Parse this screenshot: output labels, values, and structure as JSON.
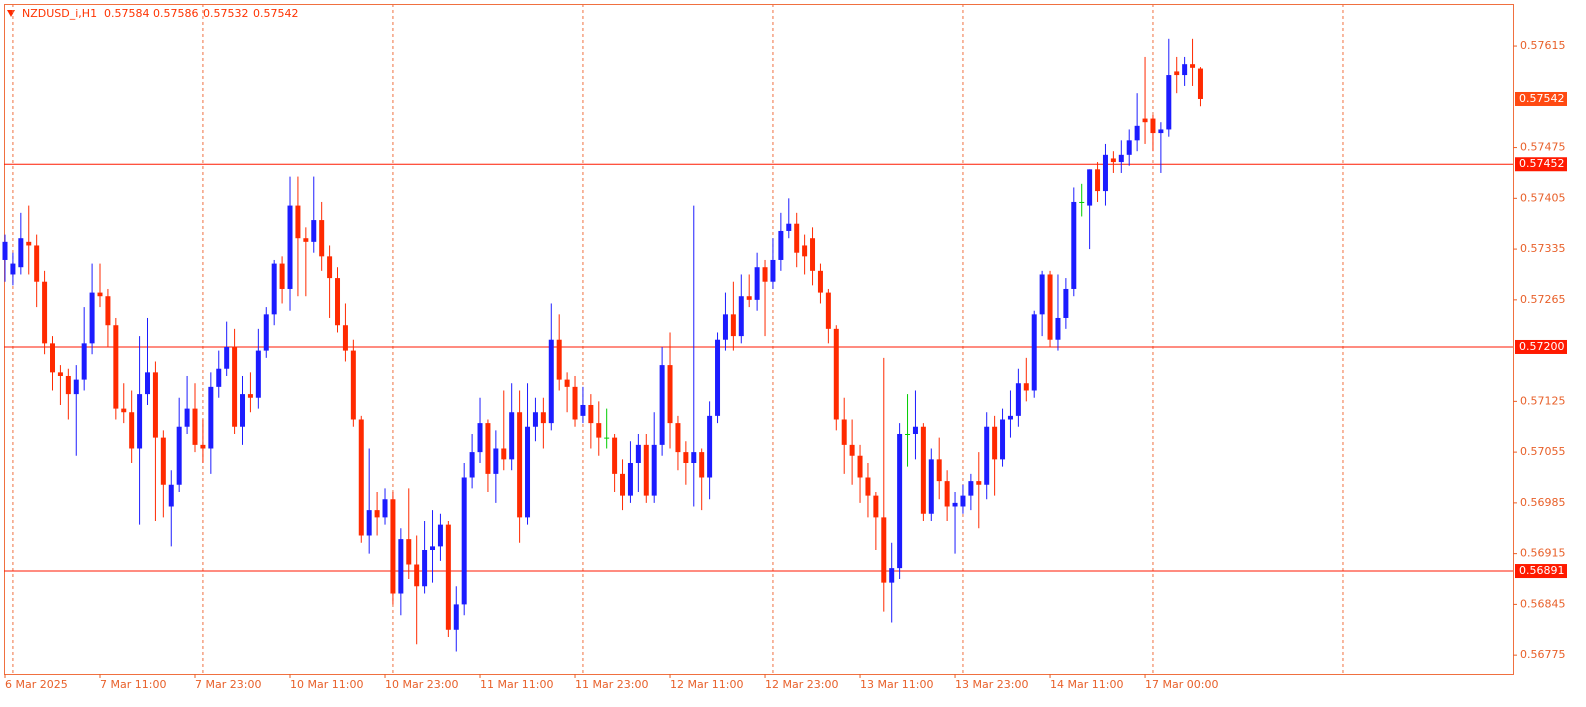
{
  "chart_data": {
    "type": "candlestick",
    "title": "NZDUSD_i,H1",
    "ohlc_header": [
      0.57584,
      0.57586,
      0.57532,
      0.57542
    ],
    "categories": [
      "6 Mar 2025",
      null,
      null,
      null,
      null,
      null,
      null,
      null,
      null,
      null,
      null,
      null,
      "7 Mar 11:00",
      null,
      null,
      null,
      null,
      null,
      null,
      null,
      null,
      null,
      null,
      null,
      "7 Mar 23:00",
      null,
      null,
      null,
      null,
      null,
      null,
      null,
      null,
      null,
      null,
      null,
      "10 Mar 11:00",
      null,
      null,
      null,
      null,
      null,
      null,
      null,
      null,
      null,
      null,
      null,
      "10 Mar 23:00",
      null,
      null,
      null,
      null,
      null,
      null,
      null,
      null,
      null,
      null,
      null,
      "11 Mar 11:00",
      null,
      null,
      null,
      null,
      null,
      null,
      null,
      null,
      null,
      null,
      null,
      "11 Mar 23:00",
      null,
      null,
      null,
      null,
      null,
      null,
      null,
      null,
      null,
      null,
      null,
      "12 Mar 11:00",
      null,
      null,
      null,
      null,
      null,
      null,
      null,
      null,
      null,
      null,
      null,
      "12 Mar 23:00",
      null,
      null,
      null,
      null,
      null,
      null,
      null,
      null,
      null,
      null,
      null,
      "13 Mar 11:00",
      null,
      null,
      null,
      null,
      null,
      null,
      null,
      null,
      null,
      null,
      null,
      "13 Mar 23:00",
      null,
      null,
      null,
      null,
      null,
      null,
      null,
      null,
      null,
      null,
      null,
      "14 Mar 11:00",
      null,
      null,
      null,
      null,
      null,
      null,
      null,
      null,
      null,
      null,
      null,
      "17 Mar 00:00",
      null,
      null,
      null,
      null,
      null,
      null,
      null
    ],
    "open": [
      0.5732,
      0.573,
      0.5731,
      0.57345,
      0.5734,
      0.5729,
      0.57205,
      0.57165,
      0.5716,
      0.57135,
      0.57155,
      0.57205,
      0.57275,
      0.5727,
      0.5723,
      0.57115,
      0.5711,
      0.5706,
      0.57135,
      0.57165,
      0.57075,
      0.5698,
      0.5701,
      0.5709,
      0.57115,
      0.57065,
      0.5706,
      0.57145,
      0.5717,
      0.572,
      0.5709,
      0.57135,
      0.5713,
      0.57195,
      0.57245,
      0.57315,
      0.5728,
      0.57395,
      0.5735,
      0.57345,
      0.57375,
      0.57325,
      0.57295,
      0.5723,
      0.57195,
      0.571,
      0.5694,
      0.56975,
      0.56965,
      0.5699,
      0.5686,
      0.56935,
      0.569,
      0.5687,
      0.5692,
      0.56925,
      0.56955,
      0.5681,
      0.56845,
      0.5702,
      0.57055,
      0.57095,
      0.57025,
      0.5706,
      0.57045,
      0.5711,
      0.56965,
      0.5709,
      0.5711,
      0.57095,
      0.5721,
      0.57155,
      0.57145,
      0.57105,
      0.5712,
      0.57095,
      0.57075,
      0.57075,
      0.57025,
      0.56995,
      0.5704,
      0.57065,
      0.56995,
      0.57065,
      0.57175,
      0.57095,
      0.57055,
      0.5704,
      0.57055,
      0.5702,
      0.57105,
      0.5721,
      0.57245,
      0.57215,
      0.5727,
      0.57265,
      0.5731,
      0.5729,
      0.5732,
      0.5736,
      0.5737,
      0.5734,
      0.5735,
      0.57305,
      0.57275,
      0.57225,
      0.571,
      0.57065,
      0.5705,
      0.5702,
      0.56995,
      0.56965,
      0.56875,
      0.56895,
      0.5708,
      0.5708,
      0.5709,
      0.5697,
      0.57045,
      0.57015,
      0.5698,
      0.5698,
      0.56995,
      0.57015,
      0.5701,
      0.5709,
      0.57045,
      0.571,
      0.57105,
      0.5715,
      0.5714,
      0.57245,
      0.573,
      0.5721,
      0.5724,
      0.5728,
      0.574,
      0.57395,
      0.57445,
      0.57415,
      0.5746,
      0.57455,
      0.57465,
      0.57485,
      0.57515,
      0.57515,
      0.57495,
      0.575,
      0.5758,
      0.57575,
      0.5759,
      0.57584
    ],
    "high": [
      0.57355,
      0.5733,
      0.57385,
      0.57395,
      0.57355,
      0.57305,
      0.57215,
      0.57175,
      0.5717,
      0.57175,
      0.57255,
      0.57315,
      0.57315,
      0.5728,
      0.5724,
      0.5715,
      0.5714,
      0.57215,
      0.5724,
      0.5718,
      0.57085,
      0.5703,
      0.5713,
      0.5716,
      0.5715,
      0.571,
      0.57165,
      0.57195,
      0.57235,
      0.57225,
      0.5716,
      0.57165,
      0.57225,
      0.57255,
      0.5732,
      0.57325,
      0.57435,
      0.57435,
      0.57365,
      0.57435,
      0.574,
      0.5734,
      0.5731,
      0.5726,
      0.5721,
      0.57105,
      0.5706,
      0.57,
      0.57005,
      0.57,
      0.5695,
      0.57005,
      0.5694,
      0.5696,
      0.56975,
      0.5697,
      0.5696,
      0.5687,
      0.5704,
      0.5708,
      0.5713,
      0.571,
      0.57085,
      0.5714,
      0.5715,
      0.5714,
      0.5715,
      0.5713,
      0.5713,
      0.5726,
      0.57245,
      0.57165,
      0.5716,
      0.57145,
      0.57135,
      0.57125,
      0.57115,
      0.5708,
      0.57045,
      0.5707,
      0.5708,
      0.5708,
      0.5711,
      0.572,
      0.5722,
      0.57105,
      0.5707,
      0.57395,
      0.5706,
      0.57125,
      0.5722,
      0.57275,
      0.5729,
      0.573,
      0.573,
      0.5733,
      0.5732,
      0.5735,
      0.57385,
      0.57405,
      0.57385,
      0.57355,
      0.57365,
      0.57315,
      0.5728,
      0.5723,
      0.5713,
      0.571,
      0.57065,
      0.5704,
      0.57,
      0.57185,
      0.5693,
      0.57095,
      0.57135,
      0.5714,
      0.57095,
      0.5706,
      0.57075,
      0.5703,
      0.57,
      0.5701,
      0.57025,
      0.57055,
      0.5711,
      0.57105,
      0.57115,
      0.5714,
      0.5717,
      0.57185,
      0.5725,
      0.57305,
      0.57305,
      0.573,
      0.57295,
      0.5742,
      0.57425,
      0.57445,
      0.57455,
      0.5748,
      0.5747,
      0.57485,
      0.575,
      0.5755,
      0.576,
      0.5752,
      0.5751,
      0.57625,
      0.576,
      0.576,
      0.57625,
      0.57586
    ],
    "low": [
      0.5729,
      0.57285,
      0.573,
      0.573,
      0.57255,
      0.5719,
      0.5714,
      0.5712,
      0.571,
      0.5705,
      0.5714,
      0.5719,
      0.57255,
      0.572,
      0.571,
      0.57095,
      0.5704,
      0.56955,
      0.5712,
      0.5696,
      0.56965,
      0.56925,
      0.57,
      0.5708,
      0.57055,
      0.5704,
      0.57025,
      0.5713,
      0.5716,
      0.5708,
      0.57065,
      0.5711,
      0.57115,
      0.57185,
      0.5723,
      0.5726,
      0.5725,
      0.5727,
      0.5727,
      0.5733,
      0.57305,
      0.5724,
      0.5722,
      0.5718,
      0.5709,
      0.5693,
      0.56915,
      0.5694,
      0.56955,
      0.56845,
      0.5683,
      0.5688,
      0.5679,
      0.5686,
      0.56875,
      0.56905,
      0.568,
      0.5678,
      0.5683,
      0.57005,
      0.5704,
      0.57,
      0.56985,
      0.5703,
      0.5703,
      0.5693,
      0.56955,
      0.5707,
      0.5706,
      0.57085,
      0.5714,
      0.5711,
      0.5709,
      0.57095,
      0.5706,
      0.5705,
      0.5706,
      0.57,
      0.56975,
      0.56985,
      0.57,
      0.56985,
      0.56985,
      0.5705,
      0.5706,
      0.5703,
      0.5701,
      0.5698,
      0.56975,
      0.5699,
      0.57095,
      0.57195,
      0.57195,
      0.57205,
      0.57255,
      0.5725,
      0.57215,
      0.5728,
      0.57305,
      0.5735,
      0.5731,
      0.573,
      0.57285,
      0.5726,
      0.57205,
      0.57085,
      0.57025,
      0.5701,
      0.56985,
      0.56965,
      0.5692,
      0.56835,
      0.5682,
      0.5688,
      0.57035,
      0.57045,
      0.5696,
      0.5696,
      0.5699,
      0.5696,
      0.56915,
      0.5697,
      0.56975,
      0.5695,
      0.5699,
      0.56995,
      0.57035,
      0.57075,
      0.5709,
      0.57125,
      0.5713,
      0.57215,
      0.572,
      0.57195,
      0.57225,
      0.5727,
      0.5738,
      0.57335,
      0.574,
      0.57395,
      0.5744,
      0.5744,
      0.5745,
      0.5747,
      0.5748,
      0.5747,
      0.5744,
      0.5749,
      0.5755,
      0.5756,
      0.5756,
      0.57532
    ],
    "close": [
      0.57345,
      0.57315,
      0.5735,
      0.5734,
      0.5729,
      0.57205,
      0.57165,
      0.5716,
      0.57135,
      0.57155,
      0.57205,
      0.57275,
      0.5727,
      0.5723,
      0.57115,
      0.5711,
      0.5706,
      0.57135,
      0.57165,
      0.57075,
      0.5701,
      0.5701,
      0.5709,
      0.57115,
      0.57065,
      0.5706,
      0.57145,
      0.5717,
      0.572,
      0.5709,
      0.57135,
      0.5713,
      0.57195,
      0.57245,
      0.57315,
      0.5728,
      0.57395,
      0.5735,
      0.57345,
      0.57375,
      0.57325,
      0.57295,
      0.5723,
      0.57195,
      0.571,
      0.5694,
      0.56975,
      0.56965,
      0.5699,
      0.5686,
      0.56935,
      0.569,
      0.5687,
      0.5692,
      0.56925,
      0.56955,
      0.5681,
      0.56845,
      0.5702,
      0.57055,
      0.57095,
      0.57025,
      0.5706,
      0.57045,
      0.5711,
      0.56965,
      0.5709,
      0.5711,
      0.57095,
      0.5721,
      0.57155,
      0.57145,
      0.571,
      0.5712,
      0.57095,
      0.57075,
      0.57075,
      0.57025,
      0.56995,
      0.5704,
      0.57065,
      0.56995,
      0.57065,
      0.57175,
      0.57095,
      0.57055,
      0.5704,
      0.57055,
      0.5702,
      0.57105,
      0.5721,
      0.57245,
      0.57215,
      0.5727,
      0.57265,
      0.5731,
      0.5729,
      0.5732,
      0.5736,
      0.5737,
      0.5733,
      0.57325,
      0.57305,
      0.57275,
      0.57225,
      0.571,
      0.57065,
      0.5705,
      0.5702,
      0.56995,
      0.56965,
      0.56875,
      0.56895,
      0.5708,
      0.5708,
      0.5709,
      0.5697,
      0.57045,
      0.57015,
      0.5698,
      0.56985,
      0.56995,
      0.57015,
      0.5701,
      0.5709,
      0.57045,
      0.571,
      0.57105,
      0.5715,
      0.5714,
      0.57245,
      0.573,
      0.5721,
      0.5724,
      0.5728,
      0.574,
      0.574,
      0.57445,
      0.57415,
      0.57465,
      0.57455,
      0.57465,
      0.57485,
      0.57505,
      0.5751,
      0.57495,
      0.575,
      0.57575,
      0.57575,
      0.5759,
      0.57585,
      0.57542
    ],
    "colors": {
      "up": "#1c1cff",
      "down": "#ff2a00",
      "doji": "#00cc00"
    },
    "ylim": [
      0.56749,
      0.57673
    ],
    "yticks": [
      0.57615,
      0.57475,
      0.57405,
      0.57335,
      0.57265,
      0.57125,
      0.57055,
      0.56985,
      0.56915,
      0.56845,
      0.56775
    ],
    "levels": [
      {
        "value": 0.57452,
        "label": "0.57452"
      },
      {
        "value": 0.572,
        "label": "0.57200"
      },
      {
        "value": 0.56891,
        "label": "0.56891"
      }
    ],
    "level_color": "#ff1a00",
    "current_price": {
      "value": 0.57542,
      "label": "0.57542"
    },
    "grid": true
  }
}
